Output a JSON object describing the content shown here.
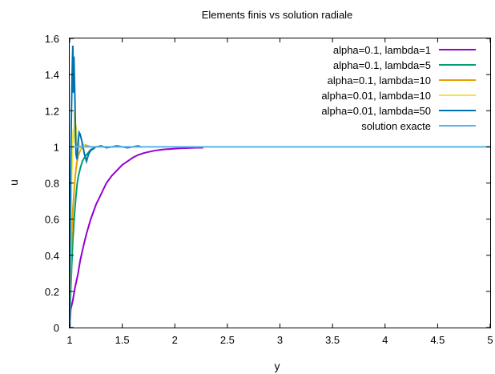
{
  "chart_data": {
    "type": "line",
    "title": "Elements finis vs solution radiale",
    "xlabel": "y",
    "ylabel": "u",
    "xlim": [
      1,
      5
    ],
    "ylim": [
      0,
      1.6
    ],
    "xticks": [
      1,
      1.5,
      2,
      2.5,
      3,
      3.5,
      4,
      4.5,
      5
    ],
    "xtick_labels": [
      "1",
      "1.5",
      "2",
      "2.5",
      "3",
      "3.5",
      "4",
      "4.5",
      "5"
    ],
    "yticks": [
      0,
      0.2,
      0.4,
      0.6,
      0.8,
      1,
      1.2,
      1.4,
      1.6
    ],
    "ytick_labels": [
      "0",
      "0.2",
      "0.4",
      "0.6",
      "0.8",
      "1",
      "1.2",
      "1.4",
      "1.6"
    ],
    "grid": false,
    "legend_position": "top-right",
    "series": [
      {
        "name": "alpha=0.1, lambda=1",
        "color": "#9400d3",
        "x": [
          1.0,
          1.01,
          1.03,
          1.05,
          1.08,
          1.1,
          1.13,
          1.16,
          1.2,
          1.25,
          1.3,
          1.35,
          1.4,
          1.45,
          1.5,
          1.55,
          1.6,
          1.65,
          1.7,
          1.75,
          1.8,
          1.85,
          1.9,
          1.95,
          2.0,
          2.05,
          2.1,
          2.15,
          2.2,
          2.27
        ],
        "y": [
          0.0,
          0.1,
          0.15,
          0.22,
          0.3,
          0.37,
          0.45,
          0.52,
          0.6,
          0.68,
          0.74,
          0.8,
          0.84,
          0.87,
          0.9,
          0.92,
          0.94,
          0.955,
          0.965,
          0.972,
          0.978,
          0.983,
          0.986,
          0.988,
          0.99,
          0.992,
          0.993,
          0.994,
          0.995,
          0.995
        ]
      },
      {
        "name": "alpha=0.1, lambda=5",
        "color": "#009e73",
        "x": [
          1.0,
          1.01,
          1.02,
          1.03,
          1.04,
          1.05,
          1.06,
          1.07,
          1.08,
          1.1,
          1.12,
          1.15,
          1.18,
          1.2,
          1.22,
          1.25
        ],
        "y": [
          0.0,
          0.2,
          0.35,
          0.48,
          0.58,
          0.66,
          0.73,
          0.79,
          0.83,
          0.88,
          0.92,
          0.95,
          0.97,
          0.985,
          0.99,
          1.0
        ]
      },
      {
        "name": "alpha=0.1, lambda=10",
        "color": "#e69f00",
        "x": [
          1.0,
          1.01,
          1.02,
          1.03,
          1.04,
          1.05,
          1.06,
          1.07,
          1.08,
          1.1,
          1.12,
          1.15,
          1.2,
          1.25
        ],
        "y": [
          0.0,
          0.32,
          0.52,
          0.65,
          0.74,
          0.82,
          0.88,
          0.92,
          0.95,
          0.98,
          1.0,
          1.01,
          1.0,
          1.0
        ]
      },
      {
        "name": "alpha=0.01, lambda=10",
        "color": "#f0e442",
        "x": [
          1.0,
          1.005,
          1.01,
          1.015,
          1.02,
          1.025,
          1.03,
          1.035,
          1.04,
          1.045,
          1.05,
          1.06,
          1.07,
          1.08,
          1.1,
          1.12,
          1.15,
          1.2
        ],
        "y": [
          0.0,
          0.3,
          0.55,
          0.72,
          0.85,
          0.95,
          1.05,
          1.1,
          1.05,
          1.2,
          1.02,
          1.12,
          0.98,
          1.04,
          0.99,
          1.02,
          1.0,
          1.0
        ]
      },
      {
        "name": "alpha=0.01, lambda=50",
        "color": "#0072b2",
        "x": [
          1.0,
          1.005,
          1.01,
          1.015,
          1.02,
          1.025,
          1.03,
          1.035,
          1.04,
          1.045,
          1.05,
          1.055,
          1.06,
          1.07,
          1.08,
          1.09,
          1.1,
          1.12,
          1.14,
          1.16,
          1.18,
          1.2,
          1.25,
          1.3,
          1.35,
          1.4,
          1.45,
          1.5,
          1.55,
          1.6,
          1.65,
          1.68
        ],
        "y": [
          0.0,
          0.6,
          0.9,
          1.15,
          1.3,
          1.45,
          1.56,
          1.3,
          1.5,
          1.38,
          1.25,
          1.1,
          0.96,
          0.93,
          1.02,
          1.08,
          1.07,
          1.02,
          0.96,
          0.92,
          0.96,
          0.98,
          1.0,
          1.005,
          0.995,
          1.0,
          1.005,
          1.0,
          0.995,
          1.0,
          1.005,
          1.0
        ]
      },
      {
        "name": "solution exacte",
        "color": "#56b4e9",
        "x": [
          1.0,
          5.0
        ],
        "y": [
          1.0,
          1.0
        ]
      }
    ]
  }
}
